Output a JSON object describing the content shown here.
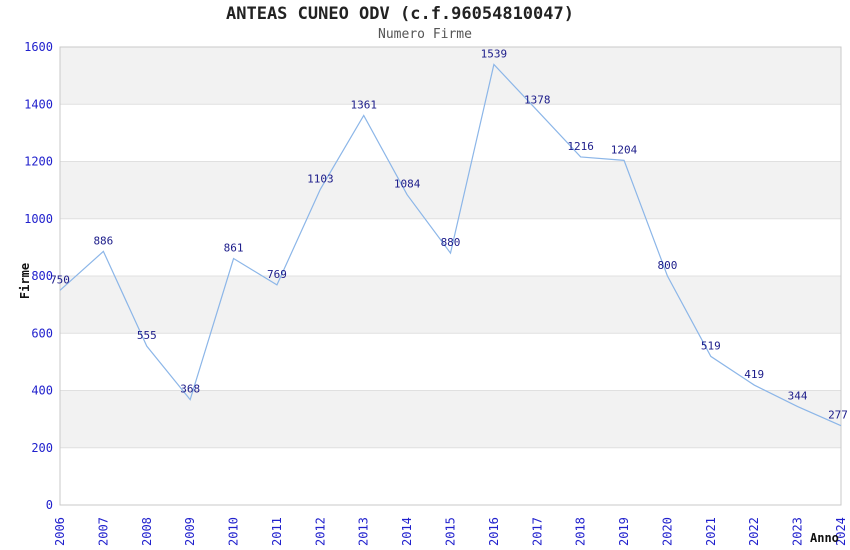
{
  "chart_data": {
    "type": "line",
    "title": "ANTEAS CUNEO ODV (c.f.96054810047)",
    "subtitle": "Numero Firme",
    "xlabel": "Anno",
    "ylabel": "Firme",
    "categories": [
      "2006",
      "2007",
      "2008",
      "2009",
      "2010",
      "2011",
      "2012",
      "2013",
      "2014",
      "2015",
      "2016",
      "2017",
      "2018",
      "2019",
      "2020",
      "2021",
      "2022",
      "2023",
      "2024"
    ],
    "values": [
      750,
      886,
      555,
      368,
      861,
      769,
      1103,
      1361,
      1084,
      880,
      1539,
      1378,
      1216,
      1204,
      800,
      519,
      419,
      344,
      277
    ],
    "ylim": [
      0,
      1600
    ],
    "ytick_step": 200,
    "grid": true,
    "legend": "none",
    "colors": {
      "line": "#8cb6e8",
      "data_label": "#1c1c8a",
      "tick_label": "#2121cd",
      "band_gray": "#f2f2f2",
      "band_white": "#ffffff",
      "gridline": "#e0e0e0",
      "plot_border": "#c9c9c9",
      "title": "#222222",
      "subtitle": "#555555",
      "axis_title": "#111111"
    }
  }
}
